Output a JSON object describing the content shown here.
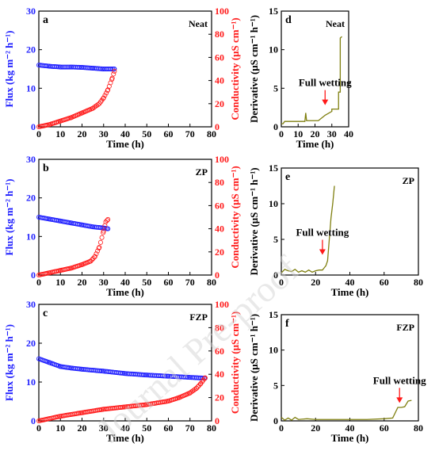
{
  "colors": {
    "flux": "#1f1fff",
    "conductivity": "#ff1a1a",
    "derivative": "#7f7f0f",
    "axis": "#000000"
  },
  "watermark_text": "Journal Pre-proof",
  "chart_data": [
    {
      "panel": "a",
      "type": "scatter",
      "title": "Neat",
      "xlabel": "Time (h)",
      "xlim": [
        0,
        80
      ],
      "xticks": [
        0,
        10,
        20,
        30,
        40,
        50,
        60,
        70,
        80
      ],
      "ylabel": "Flux (kg m⁻² h⁻¹)",
      "ylim": [
        0,
        30
      ],
      "yticks": [
        0,
        10,
        20,
        30
      ],
      "y2label": "Conductivity (μS cm⁻¹)",
      "y2lim": [
        0,
        100
      ],
      "y2ticks": [
        0,
        20,
        40,
        60,
        80,
        100
      ],
      "series": [
        {
          "axis": "left",
          "x": [
            0,
            5,
            10,
            15,
            20,
            25,
            30,
            35
          ],
          "y": [
            16.0,
            15.7,
            15.5,
            15.5,
            15.4,
            15.2,
            15.0,
            15.0
          ]
        },
        {
          "axis": "right",
          "x": [
            0,
            5,
            10,
            15,
            20,
            25,
            28,
            30,
            32,
            34,
            35
          ],
          "y": [
            0,
            2,
            5,
            8,
            12,
            16,
            20,
            25,
            32,
            42,
            48
          ]
        }
      ]
    },
    {
      "panel": "b",
      "type": "scatter",
      "title": "ZP",
      "xlabel": "Time (h)",
      "xlim": [
        0,
        80
      ],
      "xticks": [
        0,
        10,
        20,
        30,
        40,
        50,
        60,
        70,
        80
      ],
      "ylabel": "Flux (kg m⁻² h⁻¹)",
      "ylim": [
        0,
        30
      ],
      "yticks": [
        0,
        10,
        20,
        30
      ],
      "y2label": "Conductivity (μS cm⁻¹)",
      "y2lim": [
        0,
        100
      ],
      "y2ticks": [
        0,
        20,
        40,
        60,
        80,
        100
      ],
      "series": [
        {
          "axis": "left",
          "x": [
            0,
            5,
            10,
            15,
            20,
            25,
            30,
            32
          ],
          "y": [
            15.0,
            14.5,
            14.0,
            13.5,
            13.0,
            12.5,
            12.2,
            12.0
          ]
        },
        {
          "axis": "right",
          "x": [
            0,
            5,
            10,
            15,
            20,
            24,
            26,
            28,
            30,
            31,
            32
          ],
          "y": [
            0,
            2,
            4,
            6,
            9,
            12,
            16,
            24,
            38,
            46,
            48
          ]
        }
      ]
    },
    {
      "panel": "c",
      "type": "scatter",
      "title": "FZP",
      "xlabel": "Time (h)",
      "xlim": [
        0,
        80
      ],
      "xticks": [
        0,
        10,
        20,
        30,
        40,
        50,
        60,
        70,
        80
      ],
      "ylabel": "Flux (kg m⁻² h⁻¹)",
      "ylim": [
        0,
        30
      ],
      "yticks": [
        0,
        10,
        20,
        30
      ],
      "y2label": "Conductivity (μS cm⁻¹)",
      "y2lim": [
        0,
        100
      ],
      "y2ticks": [
        0,
        20,
        40,
        60,
        80,
        100
      ],
      "series": [
        {
          "axis": "left",
          "x": [
            0,
            5,
            10,
            15,
            20,
            30,
            40,
            50,
            60,
            70,
            77
          ],
          "y": [
            16.0,
            15.0,
            14.0,
            13.6,
            13.3,
            12.8,
            12.2,
            11.8,
            11.5,
            11.2,
            11.0
          ]
        },
        {
          "axis": "right",
          "x": [
            0,
            10,
            20,
            30,
            40,
            50,
            60,
            65,
            70,
            73,
            75,
            77
          ],
          "y": [
            0,
            4,
            7,
            10,
            12,
            14,
            17,
            20,
            24,
            28,
            32,
            37
          ]
        }
      ]
    },
    {
      "panel": "d",
      "type": "line",
      "title": "Neat",
      "xlabel": "Time (h)",
      "xlim": [
        0,
        40
      ],
      "xticks": [
        0,
        10,
        20,
        30,
        40
      ],
      "ylabel": "Derivative (μS cm⁻¹ h⁻¹)",
      "ylim": [
        0,
        15
      ],
      "yticks": [
        0,
        5,
        10,
        15
      ],
      "annotation": {
        "text": "Full wetting",
        "x": 26,
        "y": 2.5
      },
      "series": [
        {
          "x": [
            0,
            1,
            2,
            3,
            9,
            14,
            14.5,
            15,
            16,
            22,
            26,
            30,
            30,
            34,
            34,
            35,
            35,
            36
          ],
          "y": [
            0.4,
            0.4,
            0.7,
            0.7,
            0.7,
            0.7,
            1.8,
            0.8,
            0.8,
            0.8,
            1.5,
            2.0,
            2.3,
            2.3,
            4.5,
            4.5,
            11.5,
            11.7
          ]
        }
      ]
    },
    {
      "panel": "e",
      "type": "line",
      "title": "ZP",
      "xlabel": "Time (h)",
      "xlim": [
        0,
        80
      ],
      "xticks": [
        0,
        20,
        40,
        60,
        80
      ],
      "ylabel": "Derivative (μS cm⁻¹ h⁻¹)",
      "ylim": [
        0,
        15
      ],
      "yticks": [
        0,
        5,
        10,
        15
      ],
      "annotation": {
        "text": "Full wetting",
        "x": 24,
        "y": 2.5
      },
      "series": [
        {
          "x": [
            0,
            2,
            4,
            6,
            8,
            10,
            12,
            14,
            16,
            18,
            20,
            22,
            24,
            25,
            26,
            27,
            28,
            29,
            30,
            31
          ],
          "y": [
            0.3,
            0.8,
            0.6,
            0.5,
            0.8,
            0.4,
            0.6,
            0.4,
            0.7,
            0.4,
            0.6,
            0.7,
            0.7,
            1.0,
            1.3,
            2.0,
            5.0,
            8.0,
            10.0,
            12.5
          ]
        }
      ]
    },
    {
      "panel": "f",
      "type": "line",
      "title": "FZP",
      "xlabel": "Time (h)",
      "xlim": [
        0,
        80
      ],
      "xticks": [
        0,
        20,
        40,
        60,
        80
      ],
      "ylabel": "Derivative (μS cm⁻¹ h⁻¹)",
      "ylim": [
        0,
        15
      ],
      "yticks": [
        0,
        5,
        10,
        15
      ],
      "annotation": {
        "text": "Full wetting",
        "x": 69,
        "y": 2.2
      },
      "series": [
        {
          "x": [
            0,
            2,
            4,
            6,
            8,
            10,
            15,
            20,
            30,
            40,
            50,
            60,
            65,
            68,
            70,
            72,
            74,
            76
          ],
          "y": [
            0.5,
            0.1,
            0.4,
            0.1,
            0.5,
            0.2,
            0.3,
            0.2,
            0.2,
            0.2,
            0.2,
            0.3,
            0.4,
            1.9,
            1.9,
            2.0,
            2.8,
            2.9
          ]
        }
      ]
    }
  ]
}
